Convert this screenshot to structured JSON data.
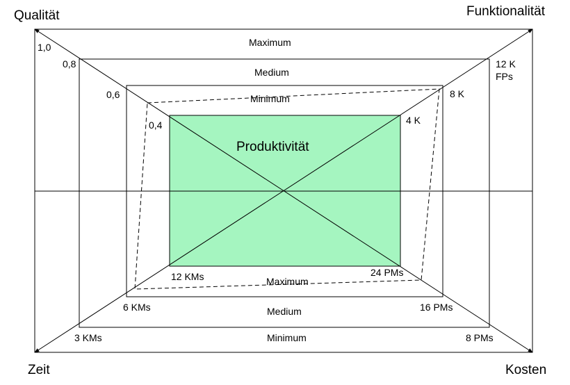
{
  "corners": {
    "top_left": "Qualität",
    "top_right": "Funktionalität",
    "bottom_left": "Zeit",
    "bottom_right": "Kosten"
  },
  "center_label": "Produktivität",
  "top_levels": {
    "outer": "Maximum",
    "middle": "Medium",
    "inner": "Minimum"
  },
  "bottom_levels": {
    "inner": "Maximum",
    "middle": "Medium",
    "outer": "Minimum"
  },
  "quality_scale": [
    "1,0",
    "0,8",
    "0,6",
    "0,4"
  ],
  "functionality_scale": {
    "outer": "12 K",
    "outer_unit": "FPs",
    "middle": "8 K",
    "inner": "4 K"
  },
  "time_scale": [
    "3 KMs",
    "6 KMs",
    "12 KMs"
  ],
  "cost_scale": [
    "8 PMs",
    "16 PMs",
    "24 PMs"
  ],
  "colors": {
    "productivity_fill": "#a5f5c0",
    "line": "#000000"
  }
}
